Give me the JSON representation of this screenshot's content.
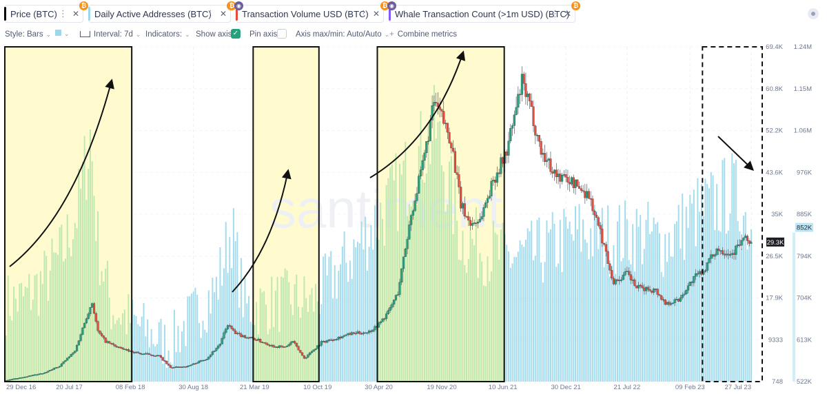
{
  "tabs": [
    {
      "label": "Price (BTC)",
      "color": "#000000",
      "badge": "btc"
    },
    {
      "label": "Daily Active Addresses (BTC)",
      "color": "#9bd9ea",
      "badge": "btc"
    },
    {
      "label": "Transaction Volume USD (BTC)",
      "color": "#e64c3c",
      "badge": "btc-hidden"
    },
    {
      "label": "Whale Transaction Count (>1m USD) (BTC)",
      "color": "#8358ff",
      "badge": "btc-hidden"
    }
  ],
  "toolbar": {
    "style": "Style: Bars",
    "interval": "Interval: 7d",
    "indicators": "Indicators:",
    "show_axis": "Show axis",
    "pin_axis": "Pin axis",
    "axis_maxmin": "Axis max/min: Auto/Auto",
    "combine": "Combine metrics"
  },
  "watermark": "santiment",
  "chart_data": {
    "type": "bar",
    "x_labels": [
      "29 Dec 16",
      "20 Jul 17",
      "08 Feb 18",
      "30 Aug 18",
      "21 Mar 19",
      "10 Oct 19",
      "30 Apr 20",
      "19 Nov 20",
      "10 Jun 21",
      "30 Dec 21",
      "21 Jul 22",
      "09 Feb 23",
      "27 Jul 23"
    ],
    "price_axis_ticks": [
      "69.4K",
      "60.8K",
      "52.2K",
      "43.6K",
      "35K",
      "26.5K",
      "17.9K",
      "9333",
      "748"
    ],
    "price_ylim": [
      748,
      69400
    ],
    "daa_axis_ticks": [
      "1.24M",
      "1.15M",
      "1.06M",
      "976K",
      "885K",
      "794K",
      "704K",
      "613K",
      "522K"
    ],
    "daa_ylim": [
      522000,
      1240000
    ],
    "current_price_label": "29.3K",
    "current_daa_label": "852K",
    "series": [
      {
        "name": "Price (BTC)",
        "kind": "candles",
        "color_up": "#26a17b",
        "color_down": "#e64c3c",
        "anchors": [
          [
            0,
            1000
          ],
          [
            20,
            2500
          ],
          [
            28,
            4000
          ],
          [
            36,
            7000
          ],
          [
            42,
            14000
          ],
          [
            45,
            17000
          ],
          [
            48,
            11000
          ],
          [
            52,
            9000
          ],
          [
            60,
            7500
          ],
          [
            70,
            6500
          ],
          [
            75,
            6300
          ],
          [
            80,
            6000
          ],
          [
            86,
            3600
          ],
          [
            95,
            3900
          ],
          [
            105,
            5500
          ],
          [
            112,
            8500
          ],
          [
            116,
            12500
          ],
          [
            120,
            10500
          ],
          [
            130,
            9500
          ],
          [
            140,
            8000
          ],
          [
            146,
            7800
          ],
          [
            150,
            9000
          ],
          [
            156,
            5500
          ],
          [
            165,
            8800
          ],
          [
            180,
            10500
          ],
          [
            190,
            11000
          ],
          [
            195,
            12500
          ],
          [
            200,
            15000
          ],
          [
            205,
            19000
          ],
          [
            212,
            35000
          ],
          [
            218,
            45000
          ],
          [
            224,
            58000
          ],
          [
            228,
            55000
          ],
          [
            233,
            50000
          ],
          [
            238,
            37000
          ],
          [
            243,
            33000
          ],
          [
            248,
            34000
          ],
          [
            255,
            42000
          ],
          [
            262,
            48000
          ],
          [
            270,
            62000
          ],
          [
            275,
            56000
          ],
          [
            280,
            48000
          ],
          [
            288,
            43000
          ],
          [
            295,
            42000
          ],
          [
            305,
            39000
          ],
          [
            312,
            30000
          ],
          [
            318,
            21000
          ],
          [
            325,
            23000
          ],
          [
            330,
            20000
          ],
          [
            340,
            19500
          ],
          [
            345,
            16800
          ],
          [
            352,
            17500
          ],
          [
            360,
            22000
          ],
          [
            365,
            23500
          ],
          [
            372,
            28000
          ],
          [
            380,
            27000
          ],
          [
            386,
            30000
          ],
          [
            390,
            29300
          ]
        ]
      },
      {
        "name": "Daily Active Addresses (BTC)",
        "kind": "bars",
        "color": "#a4dcee",
        "anchors": [
          [
            0,
            690000
          ],
          [
            10,
            700000
          ],
          [
            20,
            740000
          ],
          [
            30,
            800000
          ],
          [
            38,
            900000
          ],
          [
            44,
            1050000
          ],
          [
            48,
            820000
          ],
          [
            55,
            680000
          ],
          [
            70,
            640000
          ],
          [
            85,
            600000
          ],
          [
            95,
            650000
          ],
          [
            110,
            720000
          ],
          [
            118,
            850000
          ],
          [
            125,
            680000
          ],
          [
            140,
            690000
          ],
          [
            150,
            700000
          ],
          [
            160,
            690000
          ],
          [
            180,
            790000
          ],
          [
            200,
            900000
          ],
          [
            215,
            1000000
          ],
          [
            225,
            1060000
          ],
          [
            238,
            830000
          ],
          [
            260,
            790000
          ],
          [
            275,
            790000
          ],
          [
            290,
            820000
          ],
          [
            300,
            840000
          ],
          [
            315,
            830000
          ],
          [
            330,
            840000
          ],
          [
            345,
            820000
          ],
          [
            360,
            880000
          ],
          [
            370,
            900000
          ],
          [
            380,
            930000
          ],
          [
            390,
            852000
          ]
        ]
      }
    ],
    "highlights": [
      {
        "from": "29 Dec 16",
        "to": "08 Feb 18",
        "trend": "up"
      },
      {
        "from": "21 Mar 19",
        "to": "10 Oct 19",
        "trend": "up"
      },
      {
        "from": "30 Apr 20",
        "to": "10 Jun 21",
        "trend": "up"
      },
      {
        "from": "09 Feb 23",
        "to": "27 Jul 23",
        "trend": "down"
      }
    ]
  }
}
